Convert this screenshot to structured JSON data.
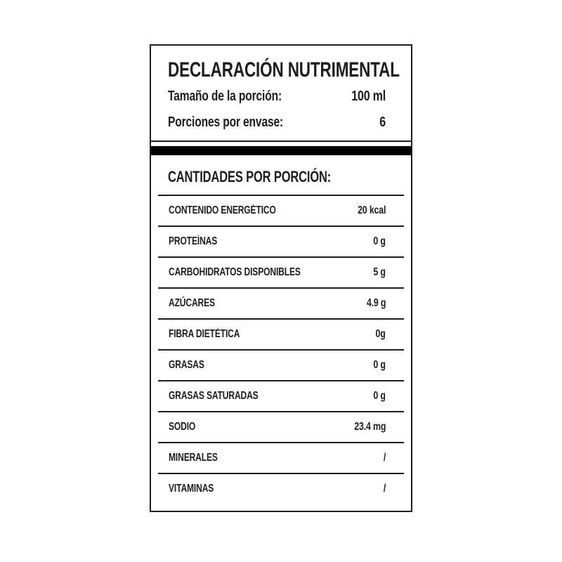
{
  "colors": {
    "background": "#ffffff",
    "text": "#1d1d1b",
    "border": "#1d1d1b",
    "separator_bar": "#000000"
  },
  "label": {
    "title": "DECLARACIÓN NUTRIMENTAL",
    "serving_rows": [
      {
        "label": "Tamaño de la porción:",
        "value": "100 ml"
      },
      {
        "label": "Porciones por envase:",
        "value": "6"
      }
    ],
    "section_heading": "CANTIDADES POR PORCIÓN:",
    "nutrient_rows": [
      {
        "label": "CONTENIDO ENERGÉTICO",
        "value": "20 kcal"
      },
      {
        "label": "PROTEÍNAS",
        "value": "0 g"
      },
      {
        "label": "CARBOHIDRATOS DISPONIBLES",
        "value": "5 g"
      },
      {
        "label": "AZÚCARES",
        "value": "4.9 g"
      },
      {
        "label": "FIBRA DIETÉTICA",
        "value": "0g"
      },
      {
        "label": "GRASAS",
        "value": "0 g"
      },
      {
        "label": "GRASAS SATURADAS",
        "value": "0 g"
      },
      {
        "label": "SODIO",
        "value": "23.4 mg"
      },
      {
        "label": "MINERALES",
        "value": "/"
      },
      {
        "label": "VITAMINAS",
        "value": "/"
      }
    ]
  }
}
